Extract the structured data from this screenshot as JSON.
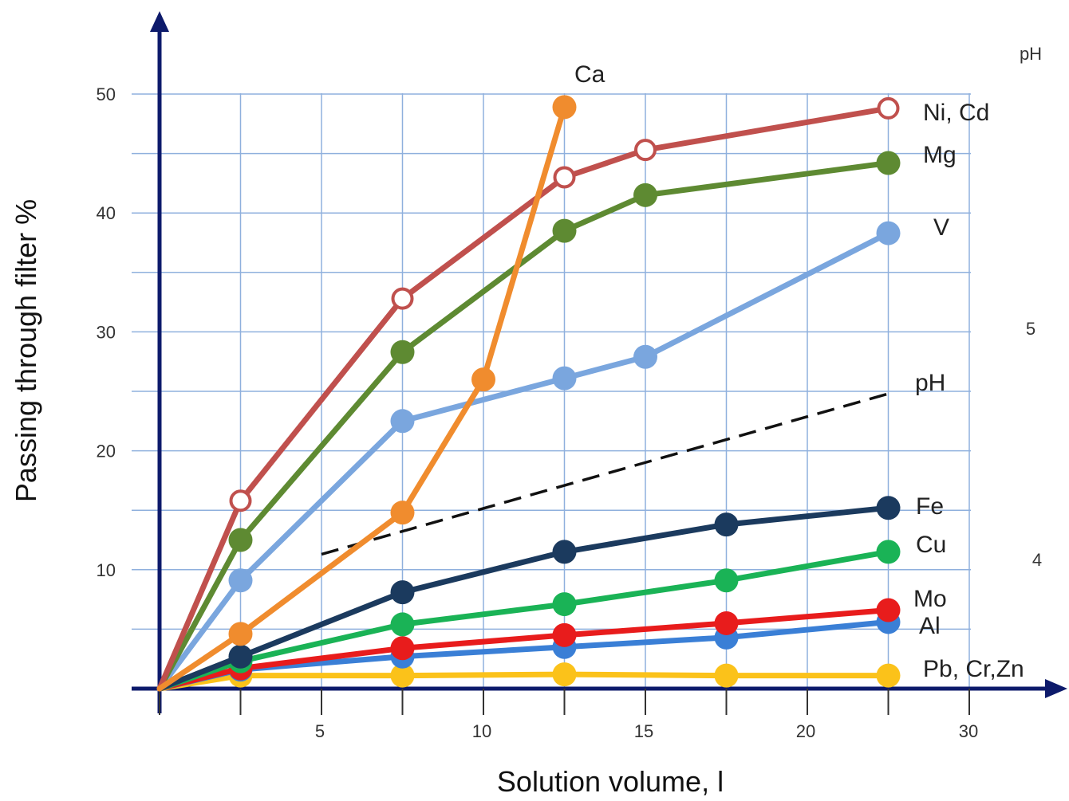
{
  "chart_data": {
    "type": "line",
    "xlabel": "Solution volume, l",
    "ylabel": "Passing  through filter %",
    "x_tick_labels": [
      "5",
      "10",
      "15",
      "20",
      "30"
    ],
    "y_tick_labels": [
      "10",
      "20",
      "30",
      "40",
      "50"
    ],
    "ylim": [
      0,
      50
    ],
    "grid": true,
    "ph_scale": {
      "title": "pH",
      "labels": [
        "5",
        "4"
      ]
    },
    "ph_line_label": "pH",
    "top_label": "Ca",
    "ph_line": {
      "style": "dashed",
      "x": [
        5,
        22.5
      ],
      "y": [
        11.3,
        24.8
      ]
    },
    "series": [
      {
        "name": "Ni, Cd",
        "color": "#c0504d",
        "marker": "hollow",
        "x": [
          0,
          2.5,
          7.5,
          12.5,
          15,
          22.5
        ],
        "y": [
          0,
          15.8,
          32.8,
          43,
          45.3,
          48.8
        ]
      },
      {
        "name": "Mg",
        "color": "#5e8a32",
        "marker": "filled",
        "x": [
          0,
          2.5,
          7.5,
          12.5,
          15,
          22.5
        ],
        "y": [
          0,
          12.5,
          28.3,
          38.5,
          41.5,
          44.2
        ]
      },
      {
        "name": "V",
        "color": "#7aa6de",
        "marker": "filled",
        "x": [
          0,
          2.5,
          7.5,
          12.5,
          15,
          22.5
        ],
        "y": [
          0,
          9.1,
          22.5,
          26.1,
          27.9,
          38.3
        ]
      },
      {
        "name": "Ca",
        "color": "#f08c2e",
        "marker": "filled",
        "x": [
          0,
          2.5,
          7.5,
          10,
          12.5
        ],
        "y": [
          0,
          4.6,
          14.8,
          26,
          48.9
        ]
      },
      {
        "name": "Fe",
        "color": "#1b3a5e",
        "marker": "filled",
        "x": [
          0,
          2.5,
          7.5,
          12.5,
          17.5,
          22.5
        ],
        "y": [
          0,
          2.7,
          8.1,
          11.5,
          13.8,
          15.2
        ]
      },
      {
        "name": "Cu",
        "color": "#1ab356",
        "marker": "filled",
        "x": [
          0,
          2.5,
          7.5,
          12.5,
          17.5,
          22.5
        ],
        "y": [
          0,
          2.3,
          5.4,
          7.1,
          9.1,
          11.5
        ]
      },
      {
        "name": "Mo",
        "color": "#e81c1c",
        "marker": "filled",
        "x": [
          0,
          2.5,
          7.5,
          12.5,
          17.5,
          22.5
        ],
        "y": [
          0,
          1.7,
          3.4,
          4.5,
          5.5,
          6.6
        ]
      },
      {
        "name": "Al",
        "color": "#3a7fd6",
        "marker": "filled",
        "x": [
          0,
          2.5,
          7.5,
          12.5,
          17.5,
          22.5
        ],
        "y": [
          0,
          1.6,
          2.7,
          3.5,
          4.3,
          5.6
        ]
      },
      {
        "name": "Pb, Cr,Zn",
        "color": "#fbc21a",
        "marker": "filled",
        "x": [
          0,
          2.5,
          7.5,
          12.5,
          17.5,
          22.5
        ],
        "y": [
          0,
          1.1,
          1.1,
          1.2,
          1.1,
          1.1
        ]
      }
    ]
  }
}
